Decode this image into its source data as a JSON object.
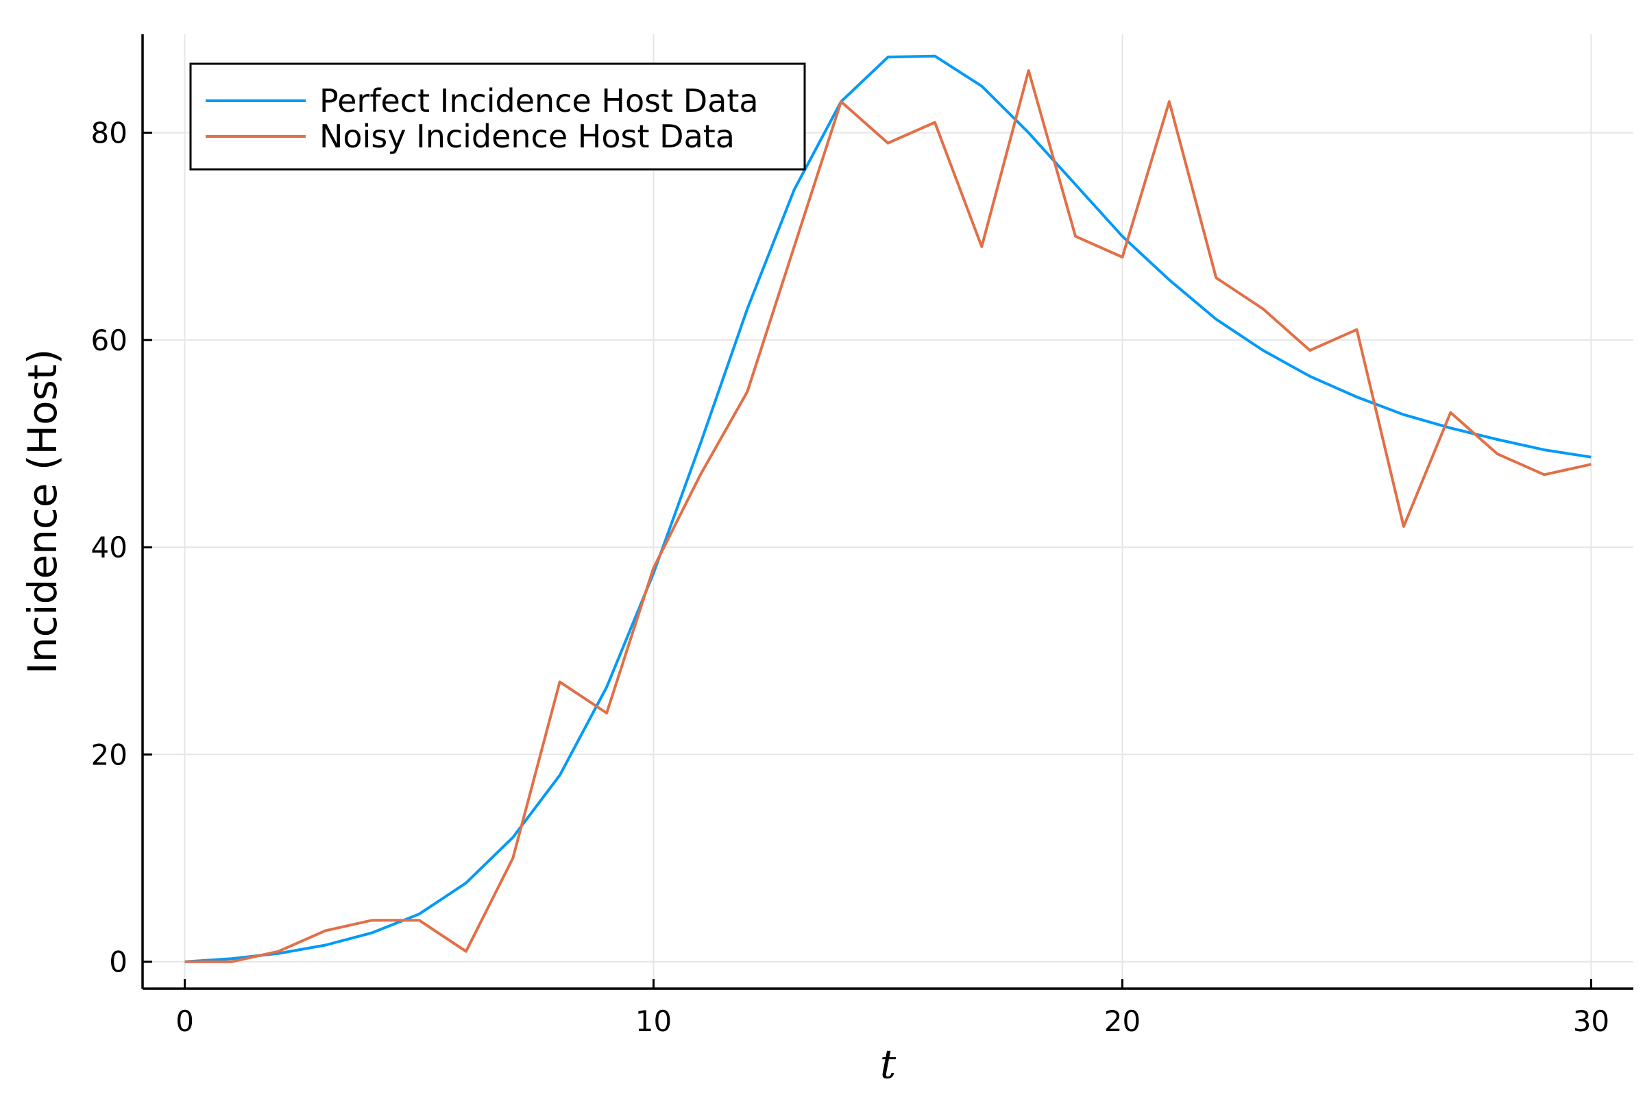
{
  "chart_data": {
    "type": "line",
    "title": "",
    "xlabel": "t",
    "ylabel": "Incidence (Host)",
    "xlim": [
      -0.9,
      30.9
    ],
    "ylim": [
      -2.6,
      89.5
    ],
    "xticks": [
      0,
      10,
      20,
      30
    ],
    "yticks": [
      0,
      20,
      40,
      60,
      80
    ],
    "grid": true,
    "legend_position": "top-left",
    "x": [
      0,
      1,
      2,
      3,
      4,
      5,
      6,
      7,
      8,
      9,
      10,
      11,
      12,
      13,
      14,
      15,
      16,
      17,
      18,
      19,
      20,
      21,
      22,
      23,
      24,
      25,
      26,
      27,
      28,
      29,
      30
    ],
    "series": [
      {
        "name": "Perfect Incidence Host Data",
        "color": "#009af9",
        "values": [
          0,
          0.3,
          0.8,
          1.6,
          2.8,
          4.6,
          7.6,
          12,
          18,
          26.5,
          37.5,
          50,
          63,
          74.5,
          83,
          87.3,
          87.4,
          84.5,
          80,
          75,
          70,
          65.8,
          62,
          59,
          56.5,
          54.5,
          52.8,
          51.5,
          50.4,
          49.4,
          48.7
        ]
      },
      {
        "name": "Noisy Incidence Host Data",
        "color": "#e26f46",
        "values": [
          0,
          0,
          1,
          3,
          4,
          4,
          1,
          10,
          27,
          24,
          38,
          47,
          55,
          69,
          83,
          79,
          81,
          69,
          86,
          70,
          68,
          83,
          66,
          63,
          59,
          61,
          42,
          53,
          49,
          47,
          48
        ]
      }
    ]
  }
}
